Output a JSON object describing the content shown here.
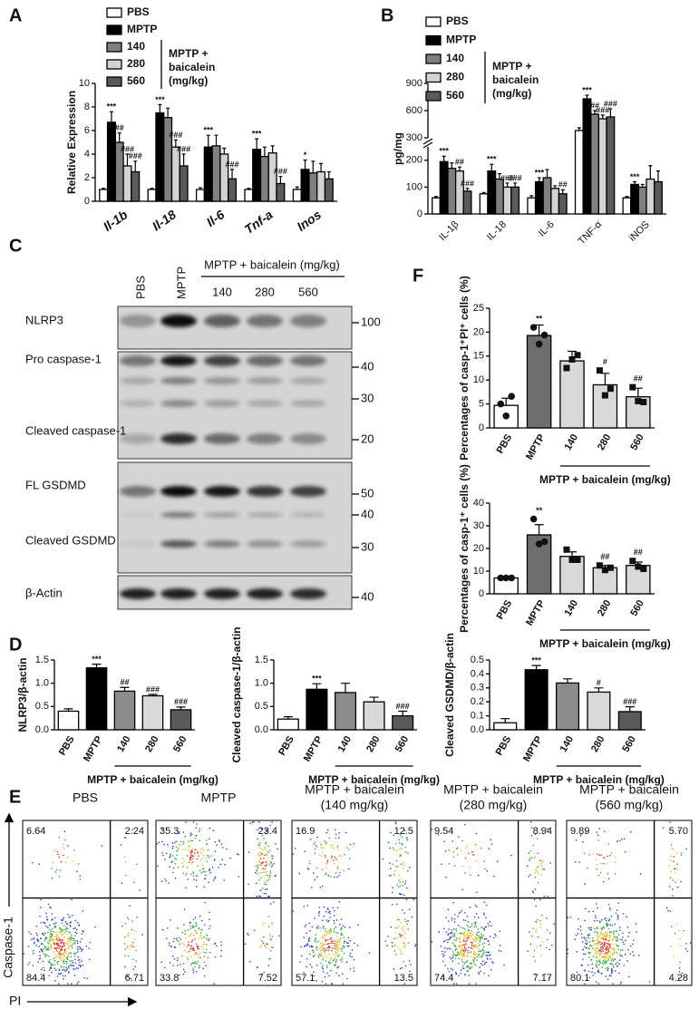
{
  "panel_labels": [
    "A",
    "B",
    "C",
    "D",
    "E",
    "F"
  ],
  "chart_data": [
    {
      "type": "bar",
      "ylabel": "Relative Expression",
      "categories": [
        "Il-1b",
        "Il-18",
        "Il-6",
        "Tnf-a",
        "Inos"
      ],
      "ylim": [
        0,
        10
      ],
      "yticks": [
        0,
        2,
        4,
        6,
        8,
        10
      ],
      "group_label": [
        "MPTP +",
        "baicalein",
        "(mg/kg)"
      ],
      "series": [
        {
          "name": "PBS",
          "color": "#ffffff",
          "values": [
            1.0,
            1.0,
            1.0,
            1.0,
            1.0
          ],
          "errors": [
            0.1,
            0.1,
            0.15,
            0.1,
            0.2
          ]
        },
        {
          "name": "MPTP",
          "color": "#000000",
          "values": [
            6.7,
            7.5,
            4.6,
            4.4,
            2.7
          ],
          "errors": [
            0.9,
            0.7,
            1.0,
            0.9,
            0.8
          ],
          "significance": [
            "***",
            "***",
            "***",
            "***",
            "*"
          ]
        },
        {
          "name": "140",
          "color": "#808080",
          "values": [
            5.0,
            7.1,
            4.7,
            3.8,
            2.4
          ],
          "errors": [
            0.8,
            0.8,
            0.9,
            0.8,
            1.0
          ],
          "significance": [
            "##",
            null,
            null,
            null,
            null
          ]
        },
        {
          "name": "280",
          "color": "#d3d3d3",
          "values": [
            3.0,
            4.6,
            4.0,
            4.1,
            2.5
          ],
          "errors": [
            1.0,
            0.6,
            0.5,
            0.6,
            0.7
          ],
          "significance": [
            "###",
            "###",
            null,
            null,
            null
          ]
        },
        {
          "name": "560",
          "color": "#5a5a5a",
          "values": [
            2.5,
            3.0,
            1.9,
            1.5,
            1.9
          ],
          "errors": [
            0.9,
            1.0,
            0.8,
            0.6,
            0.6
          ],
          "significance": [
            "###",
            "###",
            "###",
            "###",
            null
          ]
        }
      ]
    },
    {
      "type": "bar",
      "ylabel": "pg/mg",
      "categories": [
        "IL-1β",
        "IL-18",
        "IL-6",
        "TNF-α",
        "iNOS"
      ],
      "y_segments": [
        {
          "ylim": [
            0,
            250
          ],
          "yticks": [
            0,
            100,
            200
          ]
        },
        {
          "ylim": [
            300,
            900
          ],
          "yticks": [
            300,
            600,
            900
          ]
        }
      ],
      "group_label": [
        "MPTP +",
        "baicalein",
        "(mg/kg)"
      ],
      "series": [
        {
          "name": "PBS",
          "color": "#ffffff",
          "values": [
            60,
            75,
            60,
            380,
            60
          ],
          "errors": [
            5,
            5,
            8,
            30,
            5
          ]
        },
        {
          "name": "MPTP",
          "color": "#000000",
          "values": [
            195,
            160,
            120,
            730,
            110
          ],
          "errors": [
            20,
            25,
            15,
            40,
            10
          ],
          "significance": [
            "***",
            "***",
            "***",
            "***",
            "***"
          ]
        },
        {
          "name": "140",
          "color": "#808080",
          "values": [
            170,
            130,
            135,
            560,
            100
          ],
          "errors": [
            20,
            20,
            30,
            40,
            10
          ],
          "significance": [
            null,
            null,
            null,
            "##",
            null
          ]
        },
        {
          "name": "280",
          "color": "#d3d3d3",
          "values": [
            160,
            100,
            95,
            510,
            130
          ],
          "errors": [
            15,
            15,
            10,
            40,
            50
          ],
          "significance": [
            "##",
            "###",
            null,
            "###",
            null
          ]
        },
        {
          "name": "560",
          "color": "#5a5a5a",
          "values": [
            85,
            100,
            75,
            530,
            120
          ],
          "errors": [
            10,
            15,
            15,
            90,
            40
          ],
          "significance": [
            "###",
            "###",
            "##",
            "###",
            null
          ]
        }
      ]
    },
    {
      "type": "bar",
      "ylabel": "NLRP3/β-actin",
      "categories": [
        "PBS",
        "MPTP",
        "140",
        "280",
        "560"
      ],
      "values": [
        0.4,
        1.33,
        0.83,
        0.73,
        0.43
      ],
      "errors": [
        0.05,
        0.08,
        0.08,
        0.03,
        0.06
      ],
      "colors": [
        "#ffffff",
        "#000000",
        "#8c8c8c",
        "#d9d9d9",
        "#5a5a5a"
      ],
      "significance": [
        null,
        "***",
        "##",
        "###",
        "###"
      ],
      "ylim": [
        0,
        1.5
      ],
      "yticks": [
        {
          "value": 0,
          "label": "0.0"
        },
        0.5,
        {
          "value": 1,
          "label": "1.0"
        },
        1.5
      ],
      "group_label": "MPTP + baicalein (mg/kg)"
    },
    {
      "type": "bar",
      "ylabel": "Cleaved caspase-1/β-actin",
      "categories": [
        "PBS",
        "MPTP",
        "140",
        "280",
        "560"
      ],
      "values": [
        0.23,
        0.87,
        0.8,
        0.6,
        0.3
      ],
      "errors": [
        0.05,
        0.12,
        0.2,
        0.1,
        0.1
      ],
      "colors": [
        "#ffffff",
        "#000000",
        "#8c8c8c",
        "#d9d9d9",
        "#5a5a5a"
      ],
      "significance": [
        null,
        "***",
        null,
        null,
        "###"
      ],
      "ylim": [
        0,
        1.5
      ],
      "yticks": [
        {
          "value": 0,
          "label": "0.0"
        },
        0.5,
        {
          "value": 1,
          "label": "1.0"
        },
        1.5
      ],
      "group_label": "MPTP + baicalein (mg/kg)"
    },
    {
      "type": "bar",
      "ylabel": "Cleaved GSDMD/β-actin",
      "categories": [
        "PBS",
        "MPTP",
        "140",
        "280",
        "560"
      ],
      "values": [
        0.05,
        0.43,
        0.335,
        0.27,
        0.13
      ],
      "errors": [
        0.03,
        0.03,
        0.03,
        0.03,
        0.035
      ],
      "colors": [
        "#ffffff",
        "#000000",
        "#8c8c8c",
        "#d9d9d9",
        "#5a5a5a"
      ],
      "significance": [
        null,
        "***",
        null,
        "#",
        "###"
      ],
      "ylim": [
        0,
        0.5
      ],
      "yticks": [
        {
          "value": 0,
          "label": "0.0"
        },
        0.1,
        0.2,
        0.3,
        0.4,
        0.5
      ],
      "group_label": "MPTP + baicalein (mg/kg)"
    },
    {
      "type": "bar",
      "ylabel": "Percentages of casp-1⁺PI⁺ cells (%)",
      "categories": [
        "PBS",
        "MPTP",
        "140",
        "280",
        "560"
      ],
      "values": [
        4.7,
        19.3,
        14,
        9,
        6.5
      ],
      "errors": [
        1.5,
        2.2,
        2.0,
        2.4,
        1.8
      ],
      "points": [
        [
          5.0,
          2.5,
          6.6
        ],
        [
          21,
          17.5,
          19.4
        ],
        [
          12.5,
          14.3,
          15.2
        ],
        [
          12,
          6.8,
          8.2
        ],
        [
          8.5,
          5.6,
          5.4
        ]
      ],
      "markers": [
        "circle",
        "circle",
        "square",
        "square",
        "square"
      ],
      "colors": [
        "#ffffff",
        "#6e6e6e",
        "#d9d9d9",
        "#d9d9d9",
        "#d9d9d9"
      ],
      "significance": [
        null,
        "**",
        null,
        "#",
        "##"
      ],
      "ylim": [
        0,
        25
      ],
      "yticks": [
        0,
        5,
        10,
        15,
        20,
        25
      ],
      "group_label": "MPTP + baicalein (mg/kg)"
    },
    {
      "type": "bar",
      "ylabel": "Percentages of casp-1⁺ cells (%)",
      "categories": [
        "PBS",
        "MPTP",
        "140",
        "280",
        "560"
      ],
      "values": [
        7,
        26,
        16.5,
        11.5,
        12.5
      ],
      "errors": [
        0.2,
        4.5,
        2,
        1,
        1.5
      ],
      "points": [
        [
          7,
          7,
          7
        ],
        [
          33,
          22,
          23
        ],
        [
          19.5,
          15,
          15
        ],
        [
          12.5,
          10.5,
          11.5
        ],
        [
          14.5,
          12,
          11
        ]
      ],
      "markers": [
        "circle",
        "circle",
        "square",
        "square",
        "square"
      ],
      "colors": [
        "#ffffff",
        "#6e6e6e",
        "#d9d9d9",
        "#d9d9d9",
        "#d9d9d9"
      ],
      "significance": [
        null,
        "**",
        null,
        "##",
        "##"
      ],
      "ylim": [
        0,
        40
      ],
      "yticks": [
        0,
        10,
        20,
        30,
        40
      ],
      "group_label": "MPTP + baicalein (mg/kg)"
    }
  ],
  "blot": {
    "lanes": [
      "PBS",
      "MPTP"
    ],
    "treatment_label": "MPTP + baicalein (mg/kg)",
    "doses": [
      "140",
      "280",
      "560"
    ],
    "rows": [
      "NLRP3",
      "Pro caspase-1",
      "Cleaved caspase-1",
      "FL GSDMD",
      "Cleaved GSDMD",
      "β-Actin"
    ],
    "markers": [
      100,
      40,
      30,
      20,
      50,
      40,
      30,
      40
    ]
  },
  "flow": {
    "ylabel": "Caspase-1",
    "xlabel": "PI",
    "panels": [
      {
        "title": [
          "PBS"
        ],
        "quadrants": [
          "6.64",
          "2.24",
          "84.4",
          "6.71"
        ]
      },
      {
        "title": [
          "MPTP"
        ],
        "quadrants": [
          "35.3",
          "23.4",
          "33.8",
          "7.52"
        ]
      },
      {
        "title": [
          "MPTP + baicalein",
          "(140 mg/kg)"
        ],
        "quadrants": [
          "16.9",
          "12.5",
          "57.1",
          "13.5"
        ]
      },
      {
        "title": [
          "MPTP + baicalein",
          "(280 mg/kg)"
        ],
        "quadrants": [
          "9.54",
          "8.94",
          "74.4",
          "7.17"
        ]
      },
      {
        "title": [
          "MPTP + baicalein",
          "(560 mg/kg)"
        ],
        "quadrants": [
          "9.89",
          "5.70",
          "80.1",
          "4.28"
        ]
      }
    ]
  }
}
